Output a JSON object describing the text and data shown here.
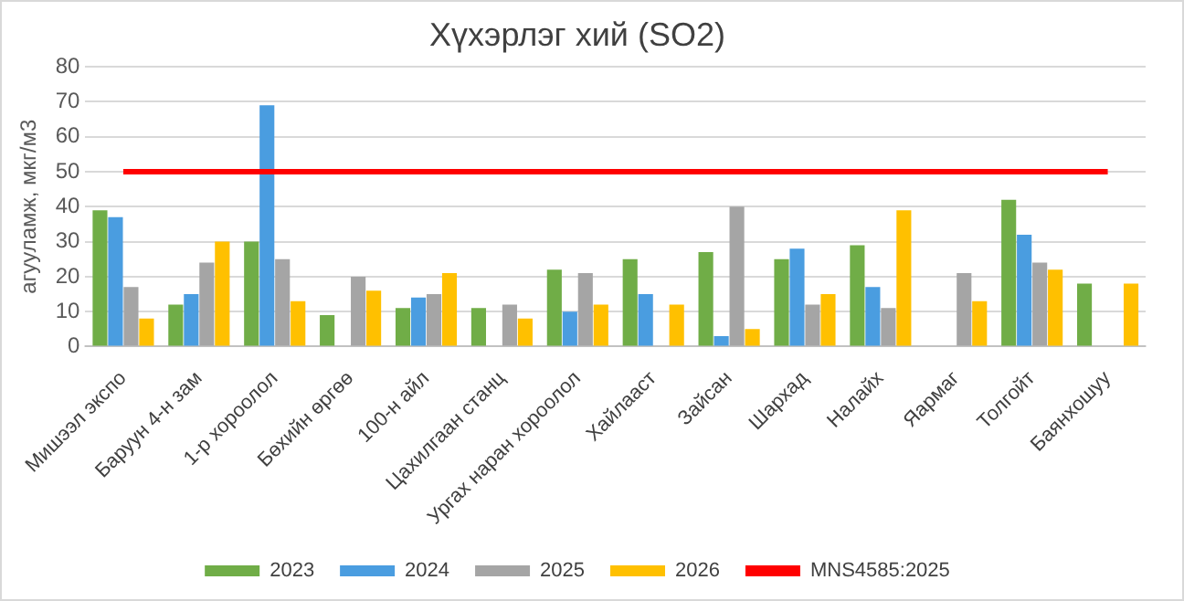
{
  "chart_data": {
    "type": "bar",
    "title": "Хүхэрлэг хий (SO2)",
    "ylabel": "агууламж, мкг/м3",
    "categories": [
      "Мишээл экспо",
      "Баруун 4-н зам",
      "1-р хороолол",
      "Бөхийн өргөө",
      "100-н айл",
      "Цахилгаан станц",
      "Ургах наран хороолол",
      "Хайлааст",
      "Зайсан",
      "Шархад",
      "Налайх",
      "Яармаг",
      "Толгойт",
      "Баянхошуу"
    ],
    "series": [
      {
        "name": "2023",
        "color": "#70ad47",
        "values": [
          39,
          12,
          30,
          9,
          11,
          11,
          22,
          25,
          27,
          25,
          29,
          null,
          42,
          18
        ]
      },
      {
        "name": "2024",
        "color": "#4a9de0",
        "values": [
          37,
          15,
          69,
          null,
          14,
          null,
          10,
          15,
          3,
          28,
          17,
          null,
          32,
          null
        ]
      },
      {
        "name": "2025",
        "color": "#a5a5a5",
        "values": [
          17,
          24,
          25,
          20,
          15,
          12,
          21,
          null,
          40,
          12,
          11,
          21,
          24,
          null
        ]
      },
      {
        "name": "2026",
        "color": "#ffc000",
        "values": [
          8,
          30,
          13,
          16,
          21,
          8,
          12,
          12,
          5,
          15,
          39,
          13,
          22,
          18
        ]
      },
      {
        "name": "MNS4585:2025",
        "type": "line",
        "color": "#ff0000",
        "values": [
          50,
          50,
          50,
          50,
          50,
          50,
          50,
          50,
          50,
          50,
          50,
          50,
          50,
          50
        ]
      }
    ],
    "ylim": [
      0,
      80
    ],
    "yticks": [
      0,
      10,
      20,
      30,
      40,
      50,
      60,
      70,
      80
    ],
    "grid": "y",
    "legend": "bottom"
  }
}
